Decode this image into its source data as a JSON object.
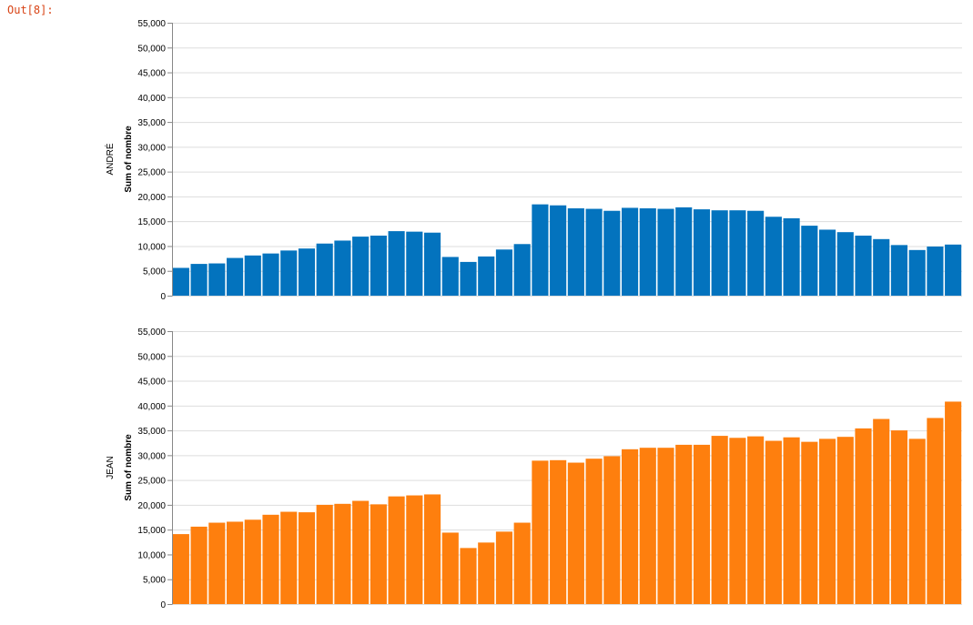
{
  "cell": {
    "prompt": "Out[8]:"
  },
  "colors": {
    "andre": "#0373be",
    "jean": "#fe7f0e",
    "grid": "#dddddd",
    "axis": "#888888"
  },
  "chart_data": {
    "type": "bar",
    "ylim": [
      0,
      55000
    ],
    "y_ticks": [
      0,
      5000,
      10000,
      15000,
      20000,
      25000,
      30000,
      35000,
      40000,
      45000,
      50000,
      55000
    ],
    "y_tick_labels": [
      "0",
      "5,000",
      "10,000",
      "15,000",
      "20,000",
      "25,000",
      "30,000",
      "35,000",
      "40,000",
      "45,000",
      "50,000",
      "55,000"
    ],
    "ylabel": "Sum of nombre",
    "grid": true,
    "facets": [
      {
        "name": "ANDRÉ",
        "values": [
          5600,
          6400,
          6500,
          7600,
          8100,
          8500,
          9100,
          9500,
          10500,
          11100,
          11900,
          12100,
          13000,
          12900,
          12700,
          7800,
          6800,
          7900,
          9300,
          10400,
          18400,
          18200,
          17600,
          17500,
          17100,
          17700,
          17600,
          17500,
          17800,
          17400,
          17200,
          17200,
          17100,
          15900,
          15600,
          14100,
          13300,
          12800,
          12100,
          11400,
          10200,
          9200,
          9900,
          10300
        ]
      },
      {
        "name": "JEAN",
        "values": [
          14100,
          15600,
          16400,
          16600,
          17000,
          18000,
          18600,
          18500,
          20000,
          20200,
          20800,
          20100,
          21700,
          21900,
          22100,
          14400,
          11300,
          12400,
          14600,
          16400,
          28900,
          29000,
          28500,
          29300,
          29800,
          31200,
          31500,
          31500,
          32100,
          32100,
          33900,
          33500,
          33800,
          32900,
          33600,
          32700,
          33300,
          33700,
          35400,
          37300,
          35000,
          33300,
          37500,
          40800
        ]
      }
    ]
  }
}
